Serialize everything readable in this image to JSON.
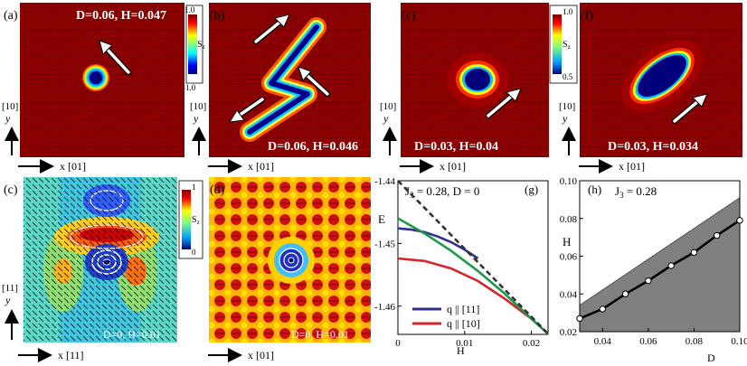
{
  "panels": {
    "a": {
      "letter": "(a)",
      "caption": "D=0.06, H=0.047"
    },
    "b": {
      "letter": "(b)",
      "caption": "D=0.06, H=0.046"
    },
    "c": {
      "letter": "(c)",
      "caption": "D=0, H=0.01"
    },
    "d": {
      "letter": "(d)",
      "caption": "D=0, H=0.01"
    },
    "e": {
      "letter": "(e)",
      "caption": ""
    },
    "f": {
      "letter": "(f)",
      "caption": "D=0.03, H=0.034"
    },
    "e2": {
      "caption": "D=0.03, H=0.04"
    },
    "g": {
      "letter": "(g)"
    },
    "h": {
      "letter": "(h)"
    }
  },
  "colorbars": {
    "top_left": {
      "max": "1.0",
      "min": "-1.0",
      "label": "S",
      "sub": "z"
    },
    "bottom_left": {
      "max": "1",
      "min": "0",
      "label": "S",
      "sub": "z"
    },
    "top_right": {
      "max": "1.0",
      "min": "0.5",
      "label": "S",
      "sub": "z"
    }
  },
  "axes_labels": {
    "y_10": "[10]",
    "y_11": "[11]",
    "y": "y",
    "x_01": "x [01]",
    "x_11": "x [11]"
  },
  "chart_data": [
    {
      "type": "line",
      "title": "J3 = 0.28, D = 0",
      "title_main": "J",
      "title_sub": "3",
      "title_rest": " = 0.28, D = 0",
      "xlabel": "H",
      "ylabel": "E",
      "xlim": [
        0,
        0.0225
      ],
      "ylim": [
        -1.4645,
        -1.44
      ],
      "x_ticks": [
        "0",
        "0.01",
        "0.02"
      ],
      "y_ticks": [
        "-1.44",
        "-1.45",
        "-1.46"
      ],
      "legend": {
        "placement": "bottom-left",
        "entries": [
          "q || [11]",
          "q || [10]"
        ]
      },
      "series": [
        {
          "name": "q || [11]",
          "color": "#2e3192",
          "x": [
            0,
            0.002,
            0.004,
            0.006,
            0.008,
            0.01,
            0.012
          ],
          "y": [
            -1.4476,
            -1.4478,
            -1.4482,
            -1.4489,
            -1.4498,
            -1.451,
            -1.4524
          ]
        },
        {
          "name": "q || [10]",
          "color": "#d8232a",
          "x": [
            0,
            0.004,
            0.008,
            0.012,
            0.016,
            0.02,
            0.0225
          ],
          "y": [
            -1.4524,
            -1.4528,
            -1.454,
            -1.456,
            -1.4588,
            -1.462,
            -1.4644
          ]
        },
        {
          "name": "",
          "color": "#1a9a4a",
          "x": [
            0,
            0.004,
            0.008,
            0.012,
            0.016,
            0.02,
            0.0225
          ],
          "y": [
            -1.446,
            -1.4484,
            -1.4512,
            -1.4544,
            -1.458,
            -1.462,
            -1.4644
          ]
        },
        {
          "name": "",
          "color": "#333333",
          "dashed": true,
          "x": [
            0,
            0.0225
          ],
          "y": [
            -1.44,
            -1.4644
          ]
        }
      ]
    },
    {
      "type": "area",
      "title": "J3 = 0.28",
      "title_main": "J",
      "title_sub": "3",
      "title_rest": " = 0.28",
      "xlabel": "D",
      "ylabel": "H",
      "xlim": [
        0.03,
        0.1
      ],
      "ylim": [
        0.02,
        0.1
      ],
      "x_ticks": [
        "0.04",
        "0.06",
        "0.08",
        "0.10"
      ],
      "y_ticks": [
        "0.02",
        "0.04",
        "0.06",
        "0.08",
        "0.10"
      ],
      "upper_boundary": {
        "x": [
          0.03,
          0.1
        ],
        "y": [
          0.034,
          0.091
        ]
      },
      "series": [
        {
          "name": "",
          "x": [
            0.03,
            0.04,
            0.05,
            0.06,
            0.07,
            0.08,
            0.09,
            0.1
          ],
          "y": [
            0.027,
            0.032,
            0.04,
            0.047,
            0.055,
            0.062,
            0.071,
            0.079
          ]
        }
      ]
    }
  ]
}
